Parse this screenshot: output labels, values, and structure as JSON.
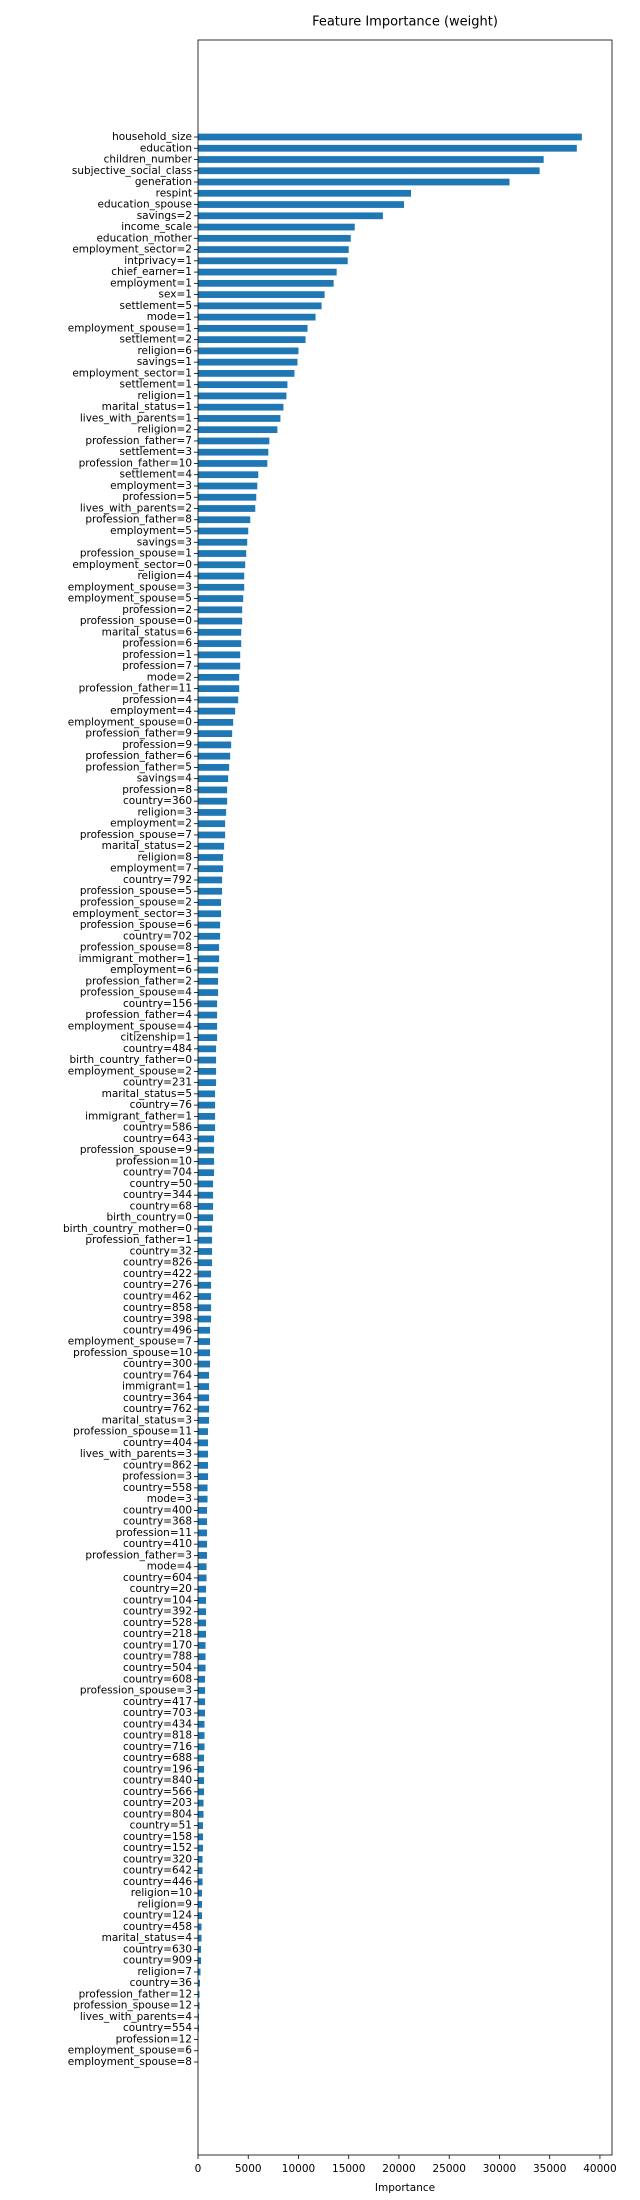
{
  "chart_data": {
    "type": "barh",
    "title": "Feature Importance (weight)",
    "x_label": "Importance",
    "color": "#1f77b4",
    "categories": [
      "household_size",
      "education",
      "children_number",
      "subjective_social_class",
      "generation",
      "respint",
      "education_spouse",
      "savings=2",
      "income_scale",
      "education_mother",
      "employment_sector=2",
      "intprivacy=1",
      "chief_earner=1",
      "employment=1",
      "sex=1",
      "settlement=5",
      "mode=1",
      "employment_spouse=1",
      "settlement=2",
      "religion=6",
      "savings=1",
      "employment_sector=1",
      "settlement=1",
      "religion=1",
      "marital_status=1",
      "lives_with_parents=1",
      "religion=2",
      "profession_father=7",
      "settlement=3",
      "profession_father=10",
      "settlement=4",
      "employment=3",
      "profession=5",
      "lives_with_parents=2",
      "profession_father=8",
      "employment=5",
      "savings=3",
      "profession_spouse=1",
      "employment_sector=0",
      "religion=4",
      "employment_spouse=3",
      "employment_spouse=5",
      "profession=2",
      "profession_spouse=0",
      "marital_status=6",
      "profession=6",
      "profession=1",
      "profession=7",
      "mode=2",
      "profession_father=11",
      "profession=4",
      "employment=4",
      "employment_spouse=0",
      "profession_father=9",
      "profession=9",
      "profession_father=6",
      "profession_father=5",
      "savings=4",
      "profession=8",
      "country=360",
      "religion=3",
      "employment=2",
      "profession_spouse=7",
      "marital_status=2",
      "religion=8",
      "employment=7",
      "country=792",
      "profession_spouse=5",
      "profession_spouse=2",
      "employment_sector=3",
      "profession_spouse=6",
      "country=702",
      "profession_spouse=8",
      "immigrant_mother=1",
      "employment=6",
      "profession_father=2",
      "profession_spouse=4",
      "country=156",
      "profession_father=4",
      "employment_spouse=4",
      "citizenship=1",
      "country=484",
      "birth_country_father=0",
      "employment_spouse=2",
      "country=231",
      "marital_status=5",
      "country=76",
      "immigrant_father=1",
      "country=586",
      "country=643",
      "profession_spouse=9",
      "profession=10",
      "country=704",
      "country=50",
      "country=344",
      "country=68",
      "birth_country=0",
      "birth_country_mother=0",
      "profession_father=1",
      "country=32",
      "country=826",
      "country=422",
      "country=276",
      "country=462",
      "country=858",
      "country=398",
      "country=496",
      "employment_spouse=7",
      "profession_spouse=10",
      "country=300",
      "country=764",
      "immigrant=1",
      "country=364",
      "country=762",
      "marital_status=3",
      "profession_spouse=11",
      "country=404",
      "lives_with_parents=3",
      "country=862",
      "profession=3",
      "country=558",
      "mode=3",
      "country=400",
      "country=368",
      "profession=11",
      "country=410",
      "profession_father=3",
      "mode=4",
      "country=604",
      "country=20",
      "country=104",
      "country=392",
      "country=528",
      "country=218",
      "country=170",
      "country=788",
      "country=504",
      "country=608",
      "profession_spouse=3",
      "country=417",
      "country=703",
      "country=434",
      "country=818",
      "country=716",
      "country=688",
      "country=196",
      "country=840",
      "country=566",
      "country=203",
      "country=804",
      "country=51",
      "country=158",
      "country=152",
      "country=320",
      "country=642",
      "country=446",
      "religion=10",
      "religion=9",
      "country=124",
      "country=458",
      "marital_status=4",
      "country=630",
      "country=909",
      "religion=7",
      "country=36",
      "profession_father=12",
      "profession_spouse=12",
      "lives_with_parents=4",
      "country=554",
      "profession=12",
      "employment_spouse=6",
      "employment_spouse=8"
    ],
    "values": [
      38200,
      37700,
      34400,
      34000,
      31000,
      21200,
      20500,
      18400,
      15600,
      15200,
      15000,
      14900,
      13800,
      13500,
      12600,
      12300,
      11700,
      10900,
      10700,
      10000,
      9900,
      9600,
      8900,
      8800,
      8500,
      8200,
      7900,
      7100,
      7000,
      6900,
      6000,
      5900,
      5800,
      5700,
      5200,
      5000,
      4900,
      4800,
      4700,
      4600,
      4600,
      4500,
      4400,
      4400,
      4300,
      4300,
      4200,
      4200,
      4100,
      4100,
      4000,
      3700,
      3500,
      3400,
      3300,
      3200,
      3100,
      3000,
      2900,
      2900,
      2800,
      2700,
      2700,
      2600,
      2500,
      2500,
      2400,
      2400,
      2300,
      2300,
      2200,
      2200,
      2100,
      2100,
      2000,
      2000,
      2000,
      1900,
      1900,
      1900,
      1900,
      1800,
      1800,
      1800,
      1800,
      1700,
      1700,
      1700,
      1700,
      1600,
      1600,
      1600,
      1600,
      1500,
      1500,
      1500,
      1500,
      1400,
      1400,
      1400,
      1400,
      1300,
      1300,
      1300,
      1300,
      1300,
      1200,
      1200,
      1200,
      1200,
      1100,
      1100,
      1100,
      1100,
      1100,
      1000,
      1000,
      1000,
      1000,
      1000,
      950,
      950,
      900,
      900,
      900,
      900,
      900,
      850,
      850,
      800,
      800,
      800,
      800,
      800,
      750,
      750,
      750,
      700,
      700,
      700,
      700,
      650,
      650,
      650,
      600,
      600,
      600,
      600,
      550,
      550,
      500,
      500,
      500,
      450,
      450,
      450,
      400,
      400,
      400,
      350,
      350,
      300,
      300,
      250,
      200,
      150,
      150,
      100,
      100,
      50,
      20,
      10
    ],
    "xlim": [
      0,
      41200
    ],
    "xticks": [
      0,
      5000,
      10000,
      15000,
      20000,
      25000,
      30000,
      35000,
      40000
    ]
  }
}
